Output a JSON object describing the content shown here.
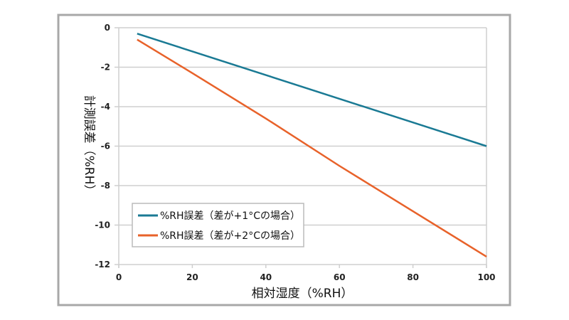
{
  "chart_data": {
    "type": "line",
    "xlabel": "相対湿度（%RH）",
    "ylabel": "計測誤差（%RH）",
    "xlim": [
      0,
      100
    ],
    "ylim": [
      -12,
      0
    ],
    "xticks": [
      0,
      20,
      40,
      60,
      80,
      100
    ],
    "yticks": [
      0,
      -2,
      -4,
      -6,
      -8,
      -10,
      -12
    ],
    "grid": "horizontal",
    "legend_position": "bottom-left",
    "x": [
      5,
      20,
      40,
      60,
      80,
      100
    ],
    "series": [
      {
        "name": "%RH誤差（差が+1°Cの場合）",
        "color": "#1a7a94",
        "values": [
          -0.3,
          -1.2,
          -2.4,
          -3.6,
          -4.8,
          -6.0
        ]
      },
      {
        "name": "%RH誤差（差が+2°Cの場合）",
        "color": "#e8622a",
        "values": [
          -0.6,
          -2.3,
          -4.6,
          -7.0,
          -9.3,
          -11.6
        ]
      }
    ]
  }
}
